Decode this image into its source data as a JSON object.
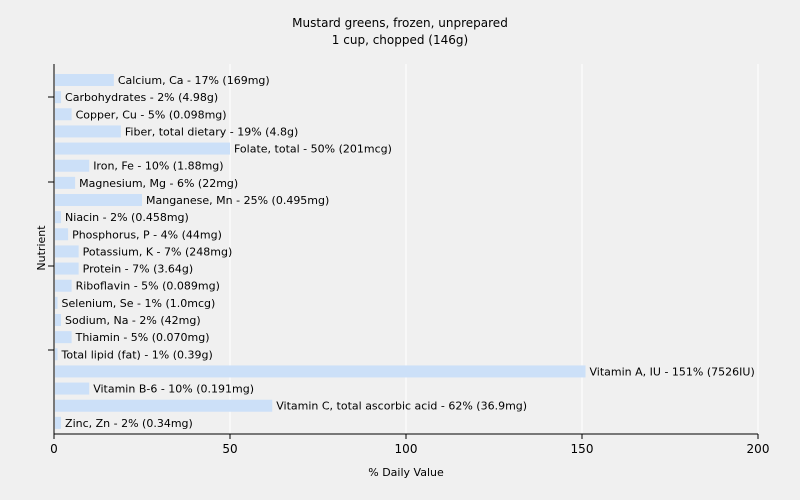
{
  "chart_data": {
    "type": "bar",
    "orientation": "horizontal",
    "title": "Mustard greens, frozen, unprepared",
    "subtitle": "1 cup, chopped (146g)",
    "xlabel": "% Daily Value",
    "ylabel": "Nutrient",
    "xlim": [
      0,
      200
    ],
    "xticks": [
      0,
      50,
      100,
      150,
      200
    ],
    "grid": true,
    "bar_color": "#cce0f8",
    "categories": [
      "Calcium, Ca",
      "Carbohydrates",
      "Copper, Cu",
      "Fiber, total dietary",
      "Folate, total",
      "Iron, Fe",
      "Magnesium, Mg",
      "Manganese, Mn",
      "Niacin",
      "Phosphorus, P",
      "Potassium, K",
      "Protein",
      "Riboflavin",
      "Selenium, Se",
      "Sodium, Na",
      "Thiamin",
      "Total lipid (fat)",
      "Vitamin A, IU",
      "Vitamin B-6",
      "Vitamin C, total ascorbic acid",
      "Zinc, Zn"
    ],
    "values": [
      17,
      2,
      5,
      19,
      50,
      10,
      6,
      25,
      2,
      4,
      7,
      7,
      5,
      1,
      2,
      5,
      1,
      151,
      10,
      62,
      2
    ],
    "labels": [
      "Calcium, Ca - 17% (169mg)",
      "Carbohydrates - 2% (4.98g)",
      "Copper, Cu - 5% (0.098mg)",
      "Fiber, total dietary - 19% (4.8g)",
      "Folate, total - 50% (201mcg)",
      "Iron, Fe - 10% (1.88mg)",
      "Magnesium, Mg - 6% (22mg)",
      "Manganese, Mn - 25% (0.495mg)",
      "Niacin - 2% (0.458mg)",
      "Phosphorus, P - 4% (44mg)",
      "Potassium, K - 7% (248mg)",
      "Protein - 7% (3.64g)",
      "Riboflavin - 5% (0.089mg)",
      "Selenium, Se - 1% (1.0mcg)",
      "Sodium, Na - 2% (42mg)",
      "Thiamin - 5% (0.070mg)",
      "Total lipid (fat) - 1% (0.39g)",
      "Vitamin A, IU - 151% (7526IU)",
      "Vitamin B-6 - 10% (0.191mg)",
      "Vitamin C, total ascorbic acid - 62% (36.9mg)",
      "Zinc, Zn - 2% (0.34mg)"
    ]
  }
}
